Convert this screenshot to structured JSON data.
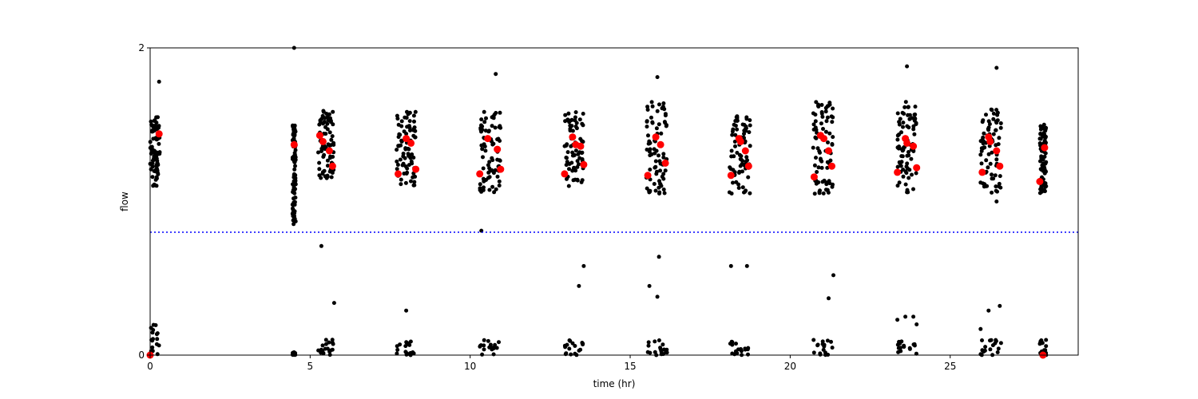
{
  "chart_data": {
    "type": "scatter",
    "xlabel": "time (hr)",
    "ylabel": "flow",
    "xlim": [
      0,
      29
    ],
    "ylim": [
      0,
      2
    ],
    "x_ticks": [
      0,
      5,
      10,
      15,
      20,
      25
    ],
    "y_ticks": [
      0,
      2
    ],
    "grid": false,
    "reference_line": {
      "y": 0.8,
      "style": "dotted",
      "color": "#0000ff"
    },
    "colors": {
      "raw": "#000000",
      "summary": "#ff0000"
    },
    "clusters": [
      {
        "x": [
          0.0,
          0.3
        ],
        "y": [
          1.1,
          1.55
        ],
        "low_y": [
          0.0,
          0.2
        ]
      },
      {
        "x": [
          4.45,
          4.55
        ],
        "y": [
          0.85,
          1.5
        ],
        "low_y": [
          0.0,
          0.02
        ]
      },
      {
        "x": [
          5.25,
          5.75
        ],
        "y": [
          1.15,
          1.6
        ],
        "low_y": [
          0.0,
          0.1
        ]
      },
      {
        "x": [
          7.7,
          8.3
        ],
        "y": [
          1.1,
          1.6
        ],
        "low_y": [
          0.0,
          0.1
        ]
      },
      {
        "x": [
          10.3,
          10.95
        ],
        "y": [
          1.05,
          1.6
        ],
        "low_y": [
          0.0,
          0.1
        ]
      },
      {
        "x": [
          12.95,
          13.55
        ],
        "y": [
          1.1,
          1.6
        ],
        "low_y": [
          0.0,
          0.1
        ]
      },
      {
        "x": [
          15.5,
          16.15
        ],
        "y": [
          1.05,
          1.65
        ],
        "low_y": [
          0.0,
          0.1
        ]
      },
      {
        "x": [
          18.1,
          18.75
        ],
        "y": [
          1.05,
          1.6
        ],
        "low_y": [
          0.0,
          0.1
        ]
      },
      {
        "x": [
          20.7,
          21.35
        ],
        "y": [
          1.05,
          1.65
        ],
        "low_y": [
          0.0,
          0.1
        ]
      },
      {
        "x": [
          23.35,
          23.95
        ],
        "y": [
          1.05,
          1.65
        ],
        "low_y": [
          0.0,
          0.1
        ]
      },
      {
        "x": [
          25.95,
          26.6
        ],
        "y": [
          1.05,
          1.6
        ],
        "low_y": [
          0.0,
          0.1
        ]
      },
      {
        "x": [
          27.8,
          28.0
        ],
        "y": [
          1.05,
          1.5
        ],
        "low_y": [
          0.0,
          0.1
        ]
      }
    ],
    "outliers": [
      {
        "x": 4.5,
        "y": 2.0
      },
      {
        "x": 0.28,
        "y": 1.78
      },
      {
        "x": 10.8,
        "y": 1.83
      },
      {
        "x": 15.85,
        "y": 1.81
      },
      {
        "x": 23.65,
        "y": 1.88
      },
      {
        "x": 26.45,
        "y": 1.87
      },
      {
        "x": 4.45,
        "y": 0.92
      },
      {
        "x": 4.45,
        "y": 0.98
      },
      {
        "x": 10.35,
        "y": 0.81
      },
      {
        "x": 5.35,
        "y": 0.71
      },
      {
        "x": 5.75,
        "y": 0.34
      },
      {
        "x": 8.0,
        "y": 0.29
      },
      {
        "x": 13.4,
        "y": 0.45
      },
      {
        "x": 13.55,
        "y": 0.58
      },
      {
        "x": 15.6,
        "y": 0.45
      },
      {
        "x": 15.85,
        "y": 0.38
      },
      {
        "x": 15.9,
        "y": 0.64
      },
      {
        "x": 18.15,
        "y": 0.58
      },
      {
        "x": 18.65,
        "y": 0.58
      },
      {
        "x": 21.2,
        "y": 0.37
      },
      {
        "x": 21.35,
        "y": 0.52
      },
      {
        "x": 23.35,
        "y": 0.23
      },
      {
        "x": 23.6,
        "y": 0.25
      },
      {
        "x": 23.85,
        "y": 0.25
      },
      {
        "x": 23.95,
        "y": 0.2
      },
      {
        "x": 25.95,
        "y": 0.17
      },
      {
        "x": 26.2,
        "y": 0.29
      },
      {
        "x": 26.55,
        "y": 0.32
      },
      {
        "x": 23.65,
        "y": 1.06
      },
      {
        "x": 26.45,
        "y": 1.0
      }
    ],
    "summary_points": [
      {
        "x": 0.0,
        "y": 0.0
      },
      {
        "x": 0.28,
        "y": 1.44
      },
      {
        "x": 4.5,
        "y": 1.37
      },
      {
        "x": 5.3,
        "y": 1.43
      },
      {
        "x": 5.4,
        "y": 1.39
      },
      {
        "x": 5.6,
        "y": 1.33
      },
      {
        "x": 5.7,
        "y": 1.23
      },
      {
        "x": 7.75,
        "y": 1.18
      },
      {
        "x": 8.0,
        "y": 1.41
      },
      {
        "x": 8.15,
        "y": 1.38
      },
      {
        "x": 8.3,
        "y": 1.21
      },
      {
        "x": 10.3,
        "y": 1.18
      },
      {
        "x": 10.55,
        "y": 1.41
      },
      {
        "x": 10.85,
        "y": 1.34
      },
      {
        "x": 10.95,
        "y": 1.21
      },
      {
        "x": 12.95,
        "y": 1.18
      },
      {
        "x": 13.2,
        "y": 1.42
      },
      {
        "x": 13.3,
        "y": 1.37
      },
      {
        "x": 13.45,
        "y": 1.36
      },
      {
        "x": 13.55,
        "y": 1.24
      },
      {
        "x": 15.55,
        "y": 1.17
      },
      {
        "x": 15.8,
        "y": 1.42
      },
      {
        "x": 15.95,
        "y": 1.37
      },
      {
        "x": 16.1,
        "y": 1.25
      },
      {
        "x": 18.15,
        "y": 1.17
      },
      {
        "x": 18.4,
        "y": 1.41
      },
      {
        "x": 18.45,
        "y": 1.39
      },
      {
        "x": 18.6,
        "y": 1.33
      },
      {
        "x": 18.7,
        "y": 1.23
      },
      {
        "x": 20.75,
        "y": 1.16
      },
      {
        "x": 20.95,
        "y": 1.43
      },
      {
        "x": 21.05,
        "y": 1.41
      },
      {
        "x": 21.2,
        "y": 1.33
      },
      {
        "x": 21.3,
        "y": 1.23
      },
      {
        "x": 23.35,
        "y": 1.19
      },
      {
        "x": 23.6,
        "y": 1.41
      },
      {
        "x": 23.65,
        "y": 1.38
      },
      {
        "x": 23.85,
        "y": 1.36
      },
      {
        "x": 23.95,
        "y": 1.22
      },
      {
        "x": 26.0,
        "y": 1.19
      },
      {
        "x": 26.2,
        "y": 1.42
      },
      {
        "x": 26.25,
        "y": 1.39
      },
      {
        "x": 26.45,
        "y": 1.33
      },
      {
        "x": 26.55,
        "y": 1.23
      },
      {
        "x": 27.8,
        "y": 1.13
      },
      {
        "x": 27.95,
        "y": 1.35
      },
      {
        "x": 27.9,
        "y": 0.0
      }
    ]
  }
}
